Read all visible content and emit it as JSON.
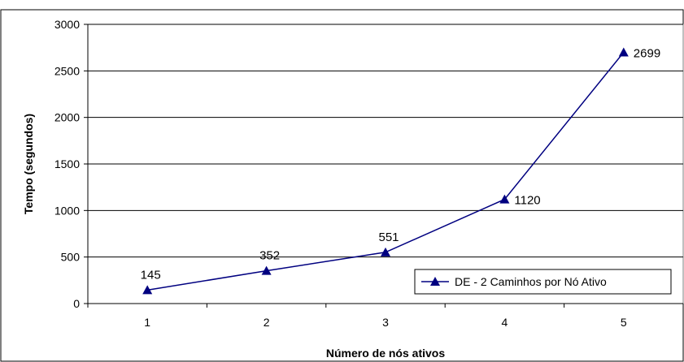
{
  "chart_data": {
    "type": "line",
    "title": "",
    "xlabel": "Número de nós ativos",
    "ylabel": "Tempo (segundos)",
    "categories": [
      "1",
      "2",
      "3",
      "4",
      "5"
    ],
    "x": [
      1,
      2,
      3,
      4,
      5
    ],
    "series": [
      {
        "name": "DE - 2 Caminhos por Nó Ativo",
        "values": [
          145,
          352,
          551,
          1120,
          2699
        ],
        "labels": [
          "145",
          "352",
          "551",
          "1120",
          "2699"
        ],
        "color": "#000080",
        "marker": "triangle"
      }
    ],
    "ylim": [
      0,
      3000
    ],
    "yticks": [
      0,
      500,
      1000,
      1500,
      2000,
      2500,
      3000
    ],
    "grid": "horizontal",
    "legend_position": "bottom-right"
  }
}
